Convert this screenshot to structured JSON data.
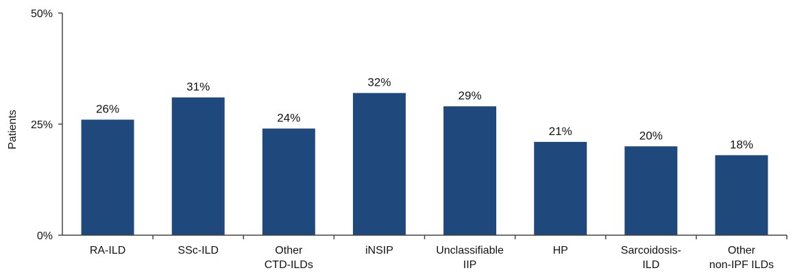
{
  "chart_data": {
    "type": "bar",
    "title": "",
    "xlabel": "",
    "ylabel": "Patients",
    "ylim": [
      0,
      50
    ],
    "yticks": [
      {
        "value": 0,
        "label": "0%"
      },
      {
        "value": 25,
        "label": "25%"
      },
      {
        "value": 50,
        "label": "50%"
      }
    ],
    "categories": [
      [
        "RA-ILD"
      ],
      [
        "SSc-ILD"
      ],
      [
        "Other",
        "CTD-ILDs"
      ],
      [
        "iNSIP"
      ],
      [
        "Unclassifiable",
        "IIP"
      ],
      [
        "HP"
      ],
      [
        "Sarcoidosis-",
        "ILD"
      ],
      [
        "Other",
        "non-IPF ILDs"
      ]
    ],
    "values": [
      26,
      31,
      24,
      32,
      29,
      21,
      20,
      18
    ],
    "data_labels": [
      "26%",
      "31%",
      "24%",
      "32%",
      "29%",
      "21%",
      "20%",
      "18%"
    ],
    "bar_color": "#1F497D",
    "grid": false,
    "legend": "none"
  }
}
